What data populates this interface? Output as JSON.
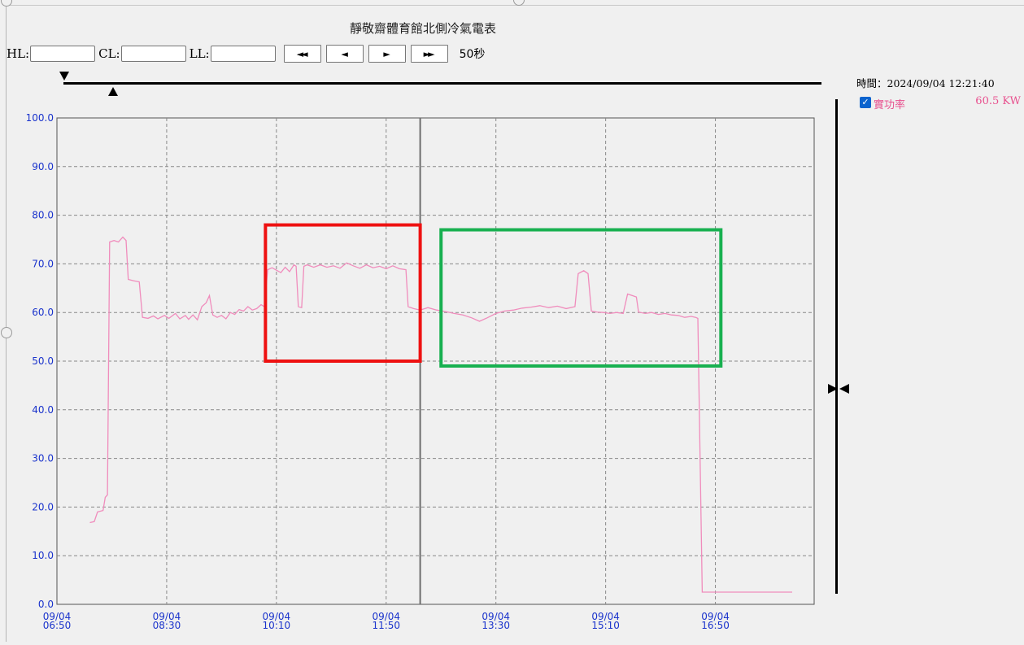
{
  "title": "靜敬齋體育館北側冷氣電表",
  "controls": {
    "hl_label": "HL:",
    "cl_label": "CL:",
    "ll_label": "LL:",
    "hl_value": "",
    "cl_value": "",
    "ll_value": "",
    "buttons": [
      {
        "icon": "fast-rewind-icon",
        "glyph": "◄◄"
      },
      {
        "icon": "step-back-icon",
        "glyph": "◄"
      },
      {
        "icon": "play-icon",
        "glyph": "►"
      },
      {
        "icon": "fast-forward-icon",
        "glyph": "►►"
      }
    ],
    "interval": "50秒"
  },
  "timestamp": "時間：2024/09/04 12:21:40",
  "legend": {
    "checked": true,
    "name": "實功率",
    "value": "60.5 KW",
    "color": "#f08cbc"
  },
  "colors": {
    "line": "#f08cbc",
    "axis_labels": "#1a33cc",
    "grid": "#888888",
    "cursor": "#6d6d6d",
    "box_red": "#ee1111",
    "box_green": "#18b050"
  },
  "chart_data": {
    "type": "line",
    "title": "",
    "xlabel": "",
    "ylabel": "",
    "ylim": [
      0,
      100
    ],
    "y_ticks": [
      "100.0",
      "90.0",
      "80.0",
      "70.0",
      "60.0",
      "50.0",
      "40.0",
      "30.0",
      "20.0",
      "10.0",
      "0.0"
    ],
    "x_range_minutes": [
      "06:50",
      "18:20"
    ],
    "x_ticks": [
      {
        "date": "09/04",
        "time": "06:50"
      },
      {
        "date": "09/04",
        "time": "08:30"
      },
      {
        "date": "09/04",
        "time": "10:10"
      },
      {
        "date": "09/04",
        "time": "11:50"
      },
      {
        "date": "09/04",
        "time": "13:30"
      },
      {
        "date": "09/04",
        "time": "15:10"
      },
      {
        "date": "09/04",
        "time": "16:50"
      }
    ],
    "grid": true,
    "cursor_time": "12:21",
    "series": [
      {
        "name": "實功率",
        "points": [
          [
            "07:20",
            16.8
          ],
          [
            "07:24",
            17.0
          ],
          [
            "07:27",
            19.0
          ],
          [
            "07:32",
            19.3
          ],
          [
            "07:34",
            22.0
          ],
          [
            "07:36",
            22.5
          ],
          [
            "07:38",
            74.5
          ],
          [
            "07:42",
            74.8
          ],
          [
            "07:46",
            74.5
          ],
          [
            "07:50",
            75.5
          ],
          [
            "07:53",
            74.8
          ],
          [
            "07:55",
            66.8
          ],
          [
            "08:00",
            66.5
          ],
          [
            "08:05",
            66.3
          ],
          [
            "08:08",
            59.0
          ],
          [
            "08:13",
            58.8
          ],
          [
            "08:18",
            59.3
          ],
          [
            "08:22",
            58.7
          ],
          [
            "08:28",
            59.4
          ],
          [
            "08:32",
            58.8
          ],
          [
            "08:38",
            59.8
          ],
          [
            "08:42",
            58.7
          ],
          [
            "08:47",
            59.4
          ],
          [
            "08:50",
            58.6
          ],
          [
            "08:54",
            59.5
          ],
          [
            "08:58",
            58.5
          ],
          [
            "09:02",
            61.2
          ],
          [
            "09:06",
            62.0
          ],
          [
            "09:09",
            63.5
          ],
          [
            "09:12",
            59.5
          ],
          [
            "09:16",
            59.0
          ],
          [
            "09:20",
            59.4
          ],
          [
            "09:24",
            58.7
          ],
          [
            "09:28",
            60.0
          ],
          [
            "09:32",
            59.6
          ],
          [
            "09:36",
            60.6
          ],
          [
            "09:40",
            60.3
          ],
          [
            "09:44",
            61.2
          ],
          [
            "09:48",
            60.5
          ],
          [
            "09:52",
            60.8
          ],
          [
            "09:56",
            61.6
          ],
          [
            "09:59",
            61.2
          ],
          [
            "10:02",
            68.8
          ],
          [
            "10:06",
            69.2
          ],
          [
            "10:10",
            68.7
          ],
          [
            "10:14",
            68.2
          ],
          [
            "10:18",
            69.3
          ],
          [
            "10:22",
            68.4
          ],
          [
            "10:26",
            69.8
          ],
          [
            "10:28",
            69.5
          ],
          [
            "10:30",
            61.2
          ],
          [
            "10:33",
            61.0
          ],
          [
            "10:35",
            69.5
          ],
          [
            "10:38",
            69.8
          ],
          [
            "10:44",
            69.3
          ],
          [
            "10:50",
            69.8
          ],
          [
            "10:56",
            69.3
          ],
          [
            "11:02",
            69.6
          ],
          [
            "11:08",
            69.1
          ],
          [
            "11:14",
            70.2
          ],
          [
            "11:20",
            69.6
          ],
          [
            "11:26",
            69.1
          ],
          [
            "11:32",
            69.8
          ],
          [
            "11:38",
            69.2
          ],
          [
            "11:44",
            69.5
          ],
          [
            "11:50",
            69.0
          ],
          [
            "11:56",
            69.6
          ],
          [
            "12:02",
            69.0
          ],
          [
            "12:08",
            68.8
          ],
          [
            "12:10",
            61.2
          ],
          [
            "12:15",
            60.8
          ],
          [
            "12:21",
            60.5
          ],
          [
            "12:28",
            61.0
          ],
          [
            "12:36",
            60.5
          ],
          [
            "12:44",
            60.2
          ],
          [
            "12:52",
            59.8
          ],
          [
            "13:00",
            59.5
          ],
          [
            "13:08",
            58.9
          ],
          [
            "13:15",
            58.2
          ],
          [
            "13:22",
            58.9
          ],
          [
            "13:30",
            59.8
          ],
          [
            "13:38",
            60.3
          ],
          [
            "13:46",
            60.5
          ],
          [
            "13:54",
            60.9
          ],
          [
            "14:02",
            61.1
          ],
          [
            "14:10",
            61.4
          ],
          [
            "14:18",
            61.0
          ],
          [
            "14:26",
            61.3
          ],
          [
            "14:34",
            60.8
          ],
          [
            "14:42",
            61.2
          ],
          [
            "14:45",
            68.0
          ],
          [
            "14:50",
            68.6
          ],
          [
            "14:54",
            68.0
          ],
          [
            "14:57",
            60.3
          ],
          [
            "15:02",
            60.1
          ],
          [
            "15:08",
            60.0
          ],
          [
            "15:14",
            59.8
          ],
          [
            "15:20",
            60.0
          ],
          [
            "15:26",
            59.8
          ],
          [
            "15:30",
            63.8
          ],
          [
            "15:34",
            63.5
          ],
          [
            "15:38",
            63.2
          ],
          [
            "15:40",
            60.1
          ],
          [
            "15:46",
            59.8
          ],
          [
            "15:52",
            60.0
          ],
          [
            "15:58",
            59.6
          ],
          [
            "16:04",
            59.8
          ],
          [
            "16:10",
            59.5
          ],
          [
            "16:16",
            59.4
          ],
          [
            "16:22",
            59.0
          ],
          [
            "16:28",
            59.2
          ],
          [
            "16:32",
            59.0
          ],
          [
            "16:34",
            58.8
          ],
          [
            "16:38",
            2.5
          ],
          [
            "17:10",
            2.5
          ],
          [
            "17:40",
            2.5
          ],
          [
            "18:00",
            2.5
          ]
        ]
      }
    ],
    "highlight_boxes": [
      {
        "color": "red",
        "from": "10:00",
        "to": "12:21",
        "y_from": 50,
        "y_to": 78
      },
      {
        "color": "green",
        "from": "12:40",
        "to": "16:55",
        "y_from": 49,
        "y_to": 77
      }
    ]
  }
}
